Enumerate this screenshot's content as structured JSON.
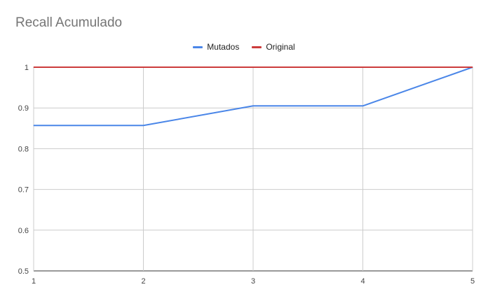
{
  "chart_data": {
    "type": "line",
    "title": "Recall Acumulado",
    "xlabel": "",
    "ylabel": "",
    "x": [
      1,
      2,
      3,
      4,
      5
    ],
    "xlim": [
      1,
      5
    ],
    "ylim": [
      0.5,
      1
    ],
    "yticks": [
      0.5,
      0.6,
      0.7,
      0.8,
      0.9,
      1
    ],
    "grid": true,
    "legend_position": "top",
    "series": [
      {
        "name": "Mutados",
        "color": "#4a86e8",
        "values": [
          0.857,
          0.857,
          0.905,
          0.905,
          1.0
        ]
      },
      {
        "name": "Original",
        "color": "#cc3b3b",
        "values": [
          1.0,
          1.0,
          1.0,
          1.0,
          1.0
        ]
      }
    ]
  }
}
